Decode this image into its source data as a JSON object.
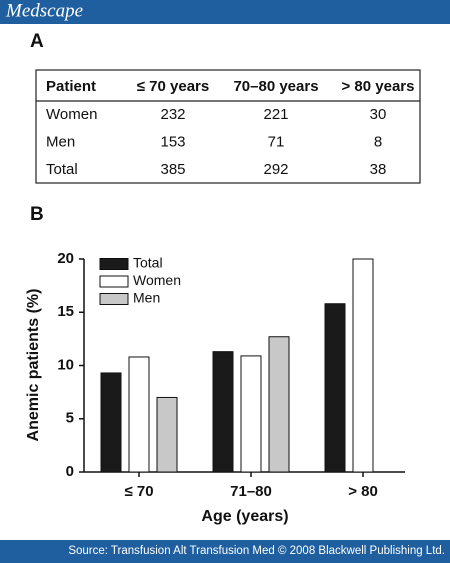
{
  "header": {
    "title": "Medscape"
  },
  "panels": [
    "A",
    "B"
  ],
  "table": {
    "header": [
      "Patient",
      "≤ 70 years",
      "70–80 years",
      "> 80 years"
    ],
    "rows": [
      [
        "Women",
        232,
        221,
        30
      ],
      [
        "Men",
        153,
        71,
        8
      ],
      [
        "Total",
        385,
        292,
        38
      ]
    ]
  },
  "chart_data": {
    "type": "bar",
    "categories": [
      "≤ 70",
      "71–80",
      "> 80"
    ],
    "series": [
      {
        "name": "Total",
        "color": "#1a1a1a",
        "values": [
          9.3,
          11.3,
          15.8
        ]
      },
      {
        "name": "Women",
        "color": "#ffffff",
        "values": [
          10.8,
          10.9,
          20.0
        ]
      },
      {
        "name": "Men",
        "color": "#c8c8c8",
        "values": [
          7.0,
          12.7,
          0
        ]
      }
    ],
    "x_label": "Age (years)",
    "y_label": "Anemic patients (%)",
    "ylim": [
      0,
      20
    ],
    "yticks": [
      0,
      5,
      10,
      15,
      20
    ],
    "legend": "upper left"
  },
  "source": "Source: Transfusion Alt Transfusion Med © 2008 Blackwell Publishing Ltd."
}
